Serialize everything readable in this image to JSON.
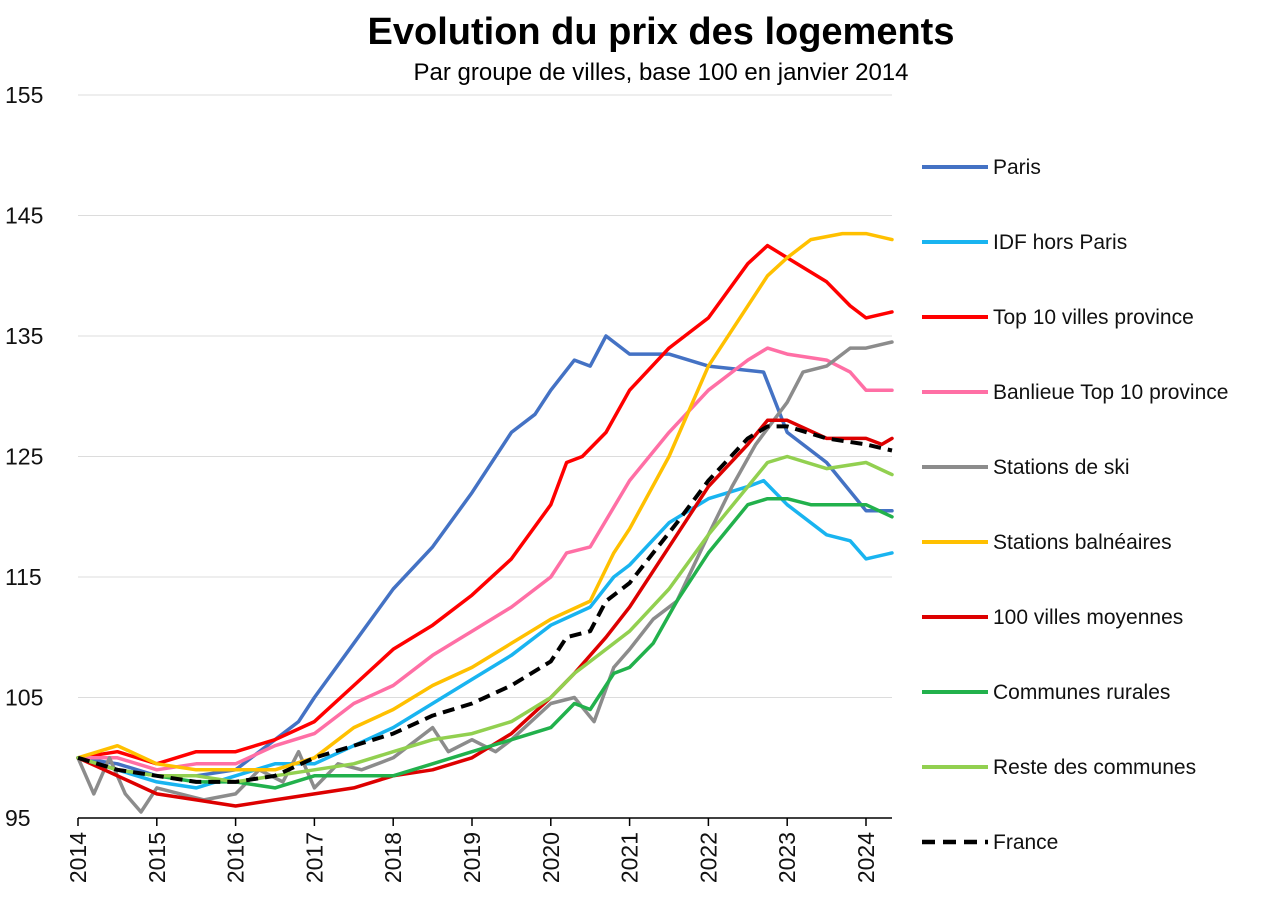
{
  "chart_data": {
    "type": "line",
    "title": "Evolution du prix des logements",
    "subtitle": "Par groupe de villes, base 100 en janvier 2014",
    "xlabel": "",
    "ylabel": "",
    "ylim": [
      95,
      155
    ],
    "xlim": [
      2014,
      2024.33
    ],
    "yticks": [
      "95",
      "105",
      "115",
      "125",
      "135",
      "145",
      "155"
    ],
    "xticks": [
      "2014",
      "2015",
      "2016",
      "2017",
      "2018",
      "2019",
      "2020",
      "2021",
      "2022",
      "2023",
      "2024"
    ],
    "grid": "horizontal",
    "legend_position": "right",
    "series": [
      {
        "name": "Paris",
        "color": "#4472C4",
        "dash": false,
        "points": [
          [
            2014,
            100
          ],
          [
            2014.5,
            99.5
          ],
          [
            2015,
            98.5
          ],
          [
            2015.5,
            98.5
          ],
          [
            2016,
            99
          ],
          [
            2016.5,
            101.5
          ],
          [
            2016.8,
            103
          ],
          [
            2017,
            105
          ],
          [
            2017.5,
            109.5
          ],
          [
            2018,
            114
          ],
          [
            2018.5,
            117.5
          ],
          [
            2019,
            122
          ],
          [
            2019.5,
            127
          ],
          [
            2019.8,
            128.5
          ],
          [
            2020,
            130.5
          ],
          [
            2020.3,
            133
          ],
          [
            2020.5,
            132.5
          ],
          [
            2020.7,
            135
          ],
          [
            2021,
            133.5
          ],
          [
            2021.5,
            133.5
          ],
          [
            2022,
            132.5
          ],
          [
            2022.7,
            132
          ],
          [
            2023,
            127
          ],
          [
            2023.5,
            124.5
          ],
          [
            2024,
            120.5
          ],
          [
            2024.33,
            120.5
          ]
        ]
      },
      {
        "name": "IDF hors Paris",
        "color": "#19B4F0",
        "dash": false,
        "points": [
          [
            2014,
            100
          ],
          [
            2014.5,
            99
          ],
          [
            2015,
            98
          ],
          [
            2015.5,
            97.5
          ],
          [
            2016,
            98.5
          ],
          [
            2016.5,
            99.5
          ],
          [
            2017,
            99.5
          ],
          [
            2017.5,
            101
          ],
          [
            2018,
            102.5
          ],
          [
            2018.5,
            104.5
          ],
          [
            2019,
            106.5
          ],
          [
            2019.5,
            108.5
          ],
          [
            2020,
            111
          ],
          [
            2020.5,
            112.5
          ],
          [
            2020.8,
            115
          ],
          [
            2021,
            116
          ],
          [
            2021.5,
            119.5
          ],
          [
            2022,
            121.5
          ],
          [
            2022.5,
            122.5
          ],
          [
            2022.7,
            123
          ],
          [
            2023,
            121
          ],
          [
            2023.5,
            118.5
          ],
          [
            2023.8,
            118
          ],
          [
            2024,
            116.5
          ],
          [
            2024.33,
            117
          ]
        ]
      },
      {
        "name": "Top 10 villes province",
        "color": "#FF0000",
        "dash": false,
        "points": [
          [
            2014,
            100
          ],
          [
            2014.5,
            100.5
          ],
          [
            2015,
            99.5
          ],
          [
            2015.5,
            100.5
          ],
          [
            2016,
            100.5
          ],
          [
            2016.5,
            101.5
          ],
          [
            2017,
            103
          ],
          [
            2017.5,
            106
          ],
          [
            2018,
            109
          ],
          [
            2018.5,
            111
          ],
          [
            2019,
            113.5
          ],
          [
            2019.5,
            116.5
          ],
          [
            2020,
            121
          ],
          [
            2020.2,
            124.5
          ],
          [
            2020.4,
            125
          ],
          [
            2020.7,
            127
          ],
          [
            2021,
            130.5
          ],
          [
            2021.5,
            134
          ],
          [
            2022,
            136.5
          ],
          [
            2022.5,
            141
          ],
          [
            2022.75,
            142.5
          ],
          [
            2023,
            141.5
          ],
          [
            2023.5,
            139.5
          ],
          [
            2023.8,
            137.5
          ],
          [
            2024,
            136.5
          ],
          [
            2024.33,
            137
          ]
        ]
      },
      {
        "name": "Banlieue Top 10 province",
        "color": "#FF6FA5",
        "dash": false,
        "points": [
          [
            2014,
            100
          ],
          [
            2014.5,
            100
          ],
          [
            2015,
            99
          ],
          [
            2015.5,
            99.5
          ],
          [
            2016,
            99.5
          ],
          [
            2016.5,
            101
          ],
          [
            2017,
            102
          ],
          [
            2017.5,
            104.5
          ],
          [
            2018,
            106
          ],
          [
            2018.5,
            108.5
          ],
          [
            2019,
            110.5
          ],
          [
            2019.5,
            112.5
          ],
          [
            2020,
            115
          ],
          [
            2020.2,
            117
          ],
          [
            2020.5,
            117.5
          ],
          [
            2021,
            123
          ],
          [
            2021.5,
            127
          ],
          [
            2022,
            130.5
          ],
          [
            2022.5,
            133
          ],
          [
            2022.75,
            134
          ],
          [
            2023,
            133.5
          ],
          [
            2023.5,
            133
          ],
          [
            2023.8,
            132
          ],
          [
            2024,
            130.5
          ],
          [
            2024.33,
            130.5
          ]
        ]
      },
      {
        "name": "Stations de ski",
        "color": "#8C8C8C",
        "dash": false,
        "points": [
          [
            2014,
            100
          ],
          [
            2014.2,
            97
          ],
          [
            2014.4,
            100
          ],
          [
            2014.6,
            97
          ],
          [
            2014.8,
            95.5
          ],
          [
            2015,
            97.5
          ],
          [
            2015.3,
            97
          ],
          [
            2015.6,
            96.5
          ],
          [
            2016,
            97
          ],
          [
            2016.3,
            99
          ],
          [
            2016.6,
            98
          ],
          [
            2016.8,
            100.5
          ],
          [
            2017,
            97.5
          ],
          [
            2017.3,
            99.5
          ],
          [
            2017.6,
            99
          ],
          [
            2018,
            100
          ],
          [
            2018.5,
            102.5
          ],
          [
            2018.7,
            100.5
          ],
          [
            2019,
            101.5
          ],
          [
            2019.3,
            100.5
          ],
          [
            2019.5,
            101.5
          ],
          [
            2020,
            104.5
          ],
          [
            2020.3,
            105
          ],
          [
            2020.55,
            103
          ],
          [
            2020.8,
            107.5
          ],
          [
            2021,
            109
          ],
          [
            2021.3,
            111.5
          ],
          [
            2021.6,
            113
          ],
          [
            2022,
            118.5
          ],
          [
            2022.3,
            122.5
          ],
          [
            2022.6,
            126
          ],
          [
            2023,
            129.5
          ],
          [
            2023.2,
            132
          ],
          [
            2023.5,
            132.5
          ],
          [
            2023.8,
            134
          ],
          [
            2024,
            134
          ],
          [
            2024.33,
            134.5
          ]
        ]
      },
      {
        "name": "Stations balnéaires",
        "color": "#FFC000",
        "dash": false,
        "points": [
          [
            2014,
            100
          ],
          [
            2014.5,
            101
          ],
          [
            2015,
            99.5
          ],
          [
            2015.5,
            99
          ],
          [
            2016,
            99
          ],
          [
            2016.5,
            99
          ],
          [
            2017,
            100
          ],
          [
            2017.5,
            102.5
          ],
          [
            2018,
            104
          ],
          [
            2018.5,
            106
          ],
          [
            2019,
            107.5
          ],
          [
            2019.5,
            109.5
          ],
          [
            2020,
            111.5
          ],
          [
            2020.5,
            113
          ],
          [
            2020.8,
            117
          ],
          [
            2021,
            119
          ],
          [
            2021.5,
            125
          ],
          [
            2022,
            132.5
          ],
          [
            2022.5,
            137.5
          ],
          [
            2022.75,
            140
          ],
          [
            2023,
            141.5
          ],
          [
            2023.3,
            143
          ],
          [
            2023.7,
            143.5
          ],
          [
            2024,
            143.5
          ],
          [
            2024.33,
            143
          ]
        ]
      },
      {
        "name": "100 villes moyennes",
        "color": "#DD0000",
        "dash": false,
        "points": [
          [
            2014,
            100
          ],
          [
            2014.5,
            98.5
          ],
          [
            2015,
            97
          ],
          [
            2015.5,
            96.5
          ],
          [
            2016,
            96
          ],
          [
            2016.5,
            96.5
          ],
          [
            2017,
            97
          ],
          [
            2017.5,
            97.5
          ],
          [
            2018,
            98.5
          ],
          [
            2018.5,
            99
          ],
          [
            2019,
            100
          ],
          [
            2019.5,
            102
          ],
          [
            2020,
            105
          ],
          [
            2020.3,
            107
          ],
          [
            2020.7,
            110
          ],
          [
            2021,
            112.5
          ],
          [
            2021.5,
            117.5
          ],
          [
            2022,
            122.5
          ],
          [
            2022.5,
            126
          ],
          [
            2022.75,
            128
          ],
          [
            2023,
            128
          ],
          [
            2023.5,
            126.5
          ],
          [
            2024,
            126.5
          ],
          [
            2024.2,
            126
          ],
          [
            2024.33,
            126.5
          ]
        ]
      },
      {
        "name": "Communes rurales",
        "color": "#22B14C",
        "dash": false,
        "points": [
          [
            2014,
            100
          ],
          [
            2014.5,
            99
          ],
          [
            2015,
            98.5
          ],
          [
            2015.5,
            98
          ],
          [
            2016,
            98
          ],
          [
            2016.5,
            97.5
          ],
          [
            2017,
            98.5
          ],
          [
            2017.5,
            98.5
          ],
          [
            2018,
            98.5
          ],
          [
            2018.5,
            99.5
          ],
          [
            2019,
            100.5
          ],
          [
            2019.5,
            101.5
          ],
          [
            2020,
            102.5
          ],
          [
            2020.3,
            104.5
          ],
          [
            2020.5,
            104
          ],
          [
            2020.8,
            107
          ],
          [
            2021,
            107.5
          ],
          [
            2021.3,
            109.5
          ],
          [
            2021.6,
            113
          ],
          [
            2022,
            117
          ],
          [
            2022.5,
            121
          ],
          [
            2022.75,
            121.5
          ],
          [
            2023,
            121.5
          ],
          [
            2023.3,
            121
          ],
          [
            2023.7,
            121
          ],
          [
            2024,
            121
          ],
          [
            2024.33,
            120
          ]
        ]
      },
      {
        "name": "Reste des communes",
        "color": "#92D050",
        "dash": false,
        "points": [
          [
            2014,
            100
          ],
          [
            2014.5,
            99
          ],
          [
            2015,
            98.5
          ],
          [
            2015.5,
            98.5
          ],
          [
            2016,
            98
          ],
          [
            2016.5,
            98.5
          ],
          [
            2017,
            99
          ],
          [
            2017.5,
            99.5
          ],
          [
            2018,
            100.5
          ],
          [
            2018.5,
            101.5
          ],
          [
            2019,
            102
          ],
          [
            2019.5,
            103
          ],
          [
            2020,
            105
          ],
          [
            2020.3,
            107
          ],
          [
            2020.5,
            108
          ],
          [
            2020.8,
            109.5
          ],
          [
            2021,
            110.5
          ],
          [
            2021.5,
            114
          ],
          [
            2022,
            118.5
          ],
          [
            2022.5,
            122.5
          ],
          [
            2022.75,
            124.5
          ],
          [
            2023,
            125
          ],
          [
            2023.5,
            124
          ],
          [
            2024,
            124.5
          ],
          [
            2024.33,
            123.5
          ]
        ]
      },
      {
        "name": "France",
        "color": "#000000",
        "dash": true,
        "points": [
          [
            2014,
            100
          ],
          [
            2014.5,
            99
          ],
          [
            2015,
            98.5
          ],
          [
            2015.5,
            98
          ],
          [
            2016,
            98
          ],
          [
            2016.5,
            98.5
          ],
          [
            2017,
            100
          ],
          [
            2017.5,
            101
          ],
          [
            2018,
            102
          ],
          [
            2018.5,
            103.5
          ],
          [
            2019,
            104.5
          ],
          [
            2019.5,
            106
          ],
          [
            2020,
            108
          ],
          [
            2020.2,
            110
          ],
          [
            2020.5,
            110.5
          ],
          [
            2020.7,
            113
          ],
          [
            2021,
            114.5
          ],
          [
            2021.3,
            117
          ],
          [
            2021.6,
            119.5
          ],
          [
            2022,
            123
          ],
          [
            2022.5,
            126.5
          ],
          [
            2022.75,
            127.5
          ],
          [
            2023,
            127.5
          ],
          [
            2023.5,
            126.5
          ],
          [
            2024,
            126
          ],
          [
            2024.33,
            125.5
          ]
        ]
      }
    ]
  }
}
